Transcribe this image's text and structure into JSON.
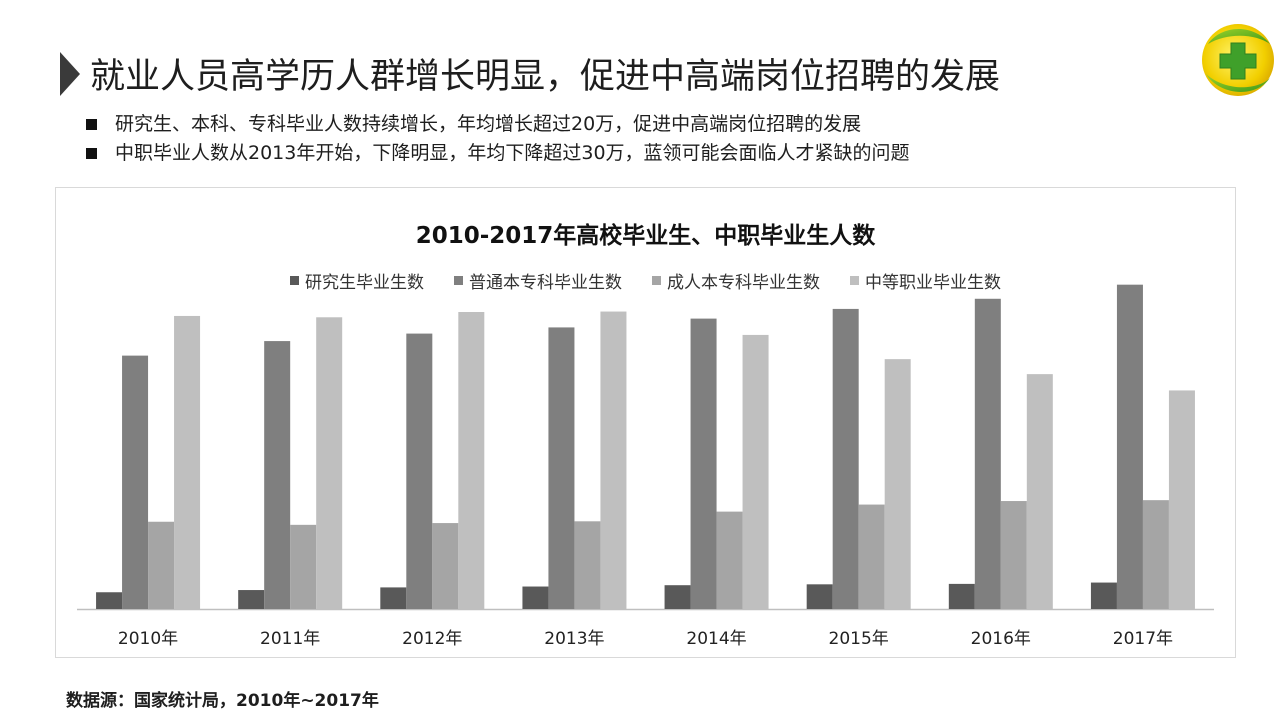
{
  "slide": {
    "title": "就业人员高学历人群增长明显，促进中高端岗位招聘的发展",
    "bullets": [
      "研究生、本科、专科毕业人数持续增长，年均增长超过20万，促进中高端岗位招聘的发展",
      "中职毕业人数从2013年开始，下降明显，年均下降超过30万，蓝领可能会面临人才紧缺的问题"
    ],
    "logo": "360-security-logo",
    "source": "数据源：国家统计局，2010年~2017年"
  },
  "colors": {
    "series": [
      "#595959",
      "#7f7f7f",
      "#a5a5a5",
      "#bfbfbf"
    ],
    "axis": "#bfbfbf",
    "frame": "#d9d9d9"
  },
  "chart_data": {
    "type": "bar",
    "title": "2010-2017年高校毕业生、中职毕业生人数",
    "xlabel": "",
    "ylabel": "",
    "grid": false,
    "legend_position": "top",
    "categories": [
      "2010年",
      "2011年",
      "2012年",
      "2013年",
      "2014年",
      "2015年",
      "2016年",
      "2017年"
    ],
    "series": [
      {
        "name": "研究生毕业生数",
        "values": [
          38,
          43,
          49,
          51,
          54,
          56,
          57,
          60
        ]
      },
      {
        "name": "普通本专科毕业生数",
        "values": [
          575,
          608,
          625,
          639,
          659,
          681,
          704,
          736
        ]
      },
      {
        "name": "成人本专科毕业生数",
        "values": [
          198,
          191,
          195,
          199,
          221,
          237,
          245,
          247
        ]
      },
      {
        "name": "中等职业毕业生数",
        "values": [
          665,
          662,
          674,
          675,
          622,
          567,
          533,
          496
        ]
      }
    ],
    "ylim": [
      0,
      800
    ]
  }
}
